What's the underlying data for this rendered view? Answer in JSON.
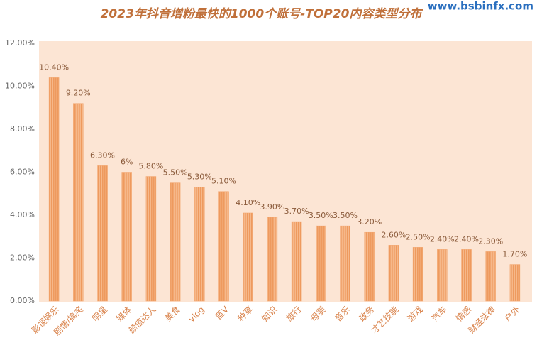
{
  "chart_data": {
    "type": "bar",
    "title": "2023年抖音增粉最快的1000个账号-TOP20内容类型分布",
    "watermark": "www.bsbinfx.com",
    "categories": [
      "影视娱乐",
      "剧情/搞笑",
      "明星",
      "媒体",
      "颜值达人",
      "美食",
      "vlog",
      "蓝V",
      "种草",
      "知识",
      "旅行",
      "母婴",
      "音乐",
      "政务",
      "才艺技能",
      "游戏",
      "汽车",
      "情感",
      "财经法律",
      "户外"
    ],
    "values": [
      10.4,
      9.2,
      6.3,
      6,
      5.8,
      5.5,
      5.3,
      5.1,
      4.1,
      3.9,
      3.7,
      3.5,
      3.5,
      3.2,
      2.6,
      2.5,
      2.4,
      2.4,
      2.3,
      1.7
    ],
    "value_labels": [
      "10.40%",
      "9.20%",
      "6.30%",
      "6%",
      "5.80%",
      "5.50%",
      "5.30%",
      "5.10%",
      "4.10%",
      "3.90%",
      "3.70%",
      "3.50%",
      "3.50%",
      "3.20%",
      "2.60%",
      "2.50%",
      "2.40%",
      "2.40%",
      "2.30%",
      "1.70%"
    ],
    "color": "#f2a46c",
    "ylim": [
      0,
      12
    ],
    "yticks": [
      {
        "value": 0,
        "label": "0.00%"
      },
      {
        "value": 2,
        "label": "2.00%"
      },
      {
        "value": 4,
        "label": "4.00%"
      },
      {
        "value": 6,
        "label": "6.00%"
      },
      {
        "value": 8,
        "label": "8.00%"
      },
      {
        "value": 10,
        "label": "10.00%"
      },
      {
        "value": 12,
        "label": "12.00%"
      }
    ],
    "grid": false
  }
}
